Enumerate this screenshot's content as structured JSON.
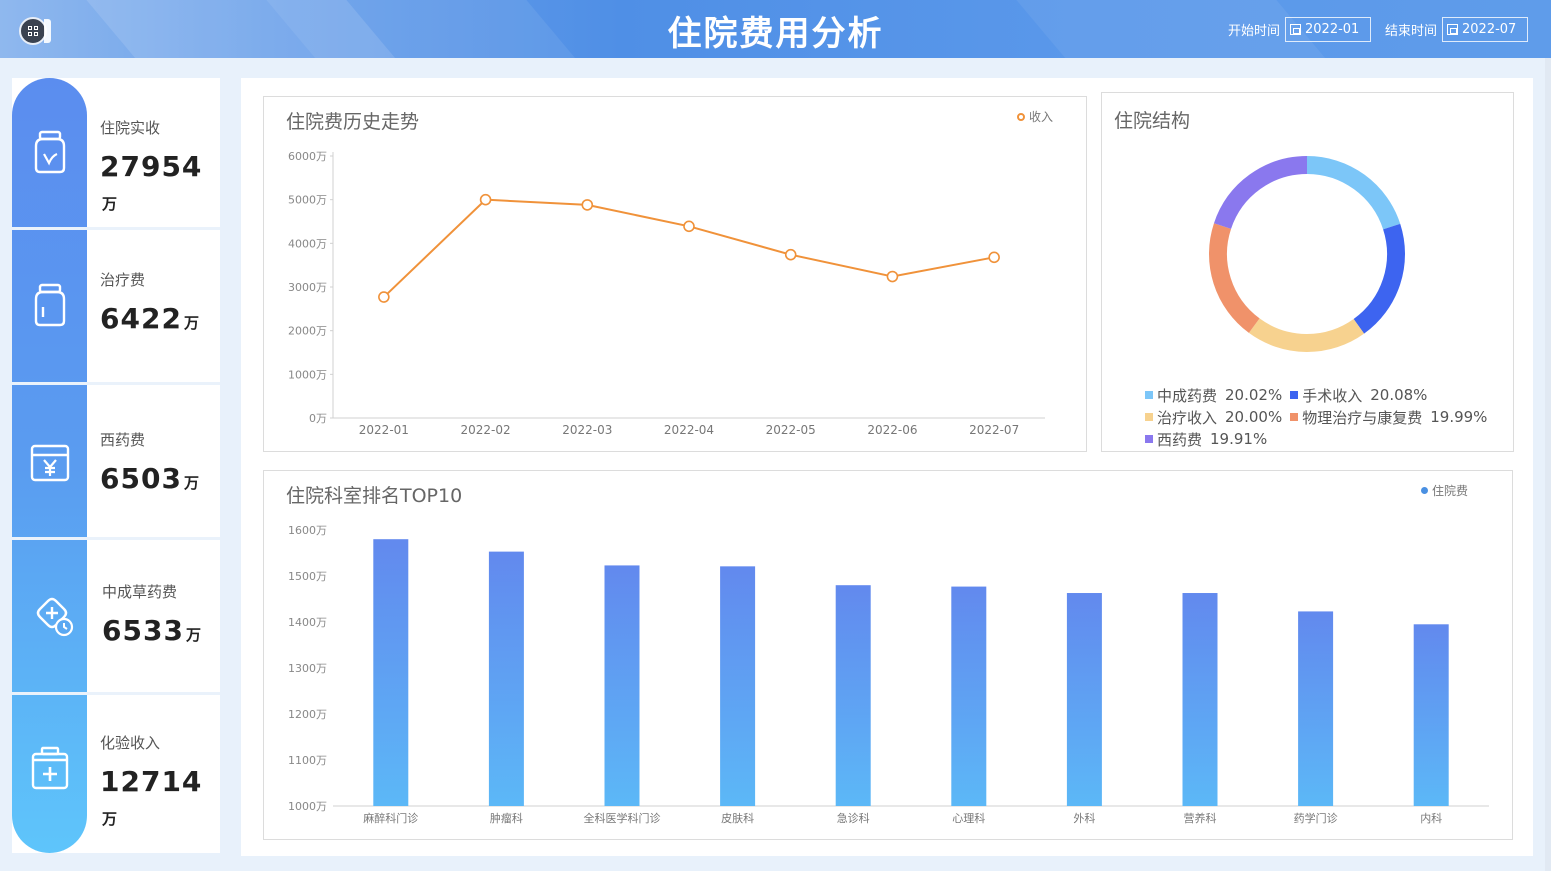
{
  "header": {
    "title": "住院费用分析",
    "start_label": "开始时间",
    "start_value": "2022-01",
    "end_label": "结束时间",
    "end_value": "2022-07"
  },
  "kpis": [
    {
      "label": "住院实收",
      "value": "27954",
      "unit": "万",
      "icon": "medicine-bottle-icon"
    },
    {
      "label": "治疗费",
      "value": "6422",
      "unit": "万",
      "icon": "bottle-icon"
    },
    {
      "label": "西药费",
      "value": "6503",
      "unit": "万",
      "icon": "yuan-card-icon"
    },
    {
      "label": "中成草药费",
      "value": "6533",
      "unit": "万",
      "icon": "medical-clock-icon"
    },
    {
      "label": "化验收入",
      "value": "12714",
      "unit": "万",
      "icon": "medical-kit-icon"
    }
  ],
  "colors": {
    "line": "#f0923a",
    "bar_top": "#6289ee",
    "bar_bottom": "#5cb8f7",
    "legend_dot": "#4a90e2"
  },
  "chart_data": [
    {
      "type": "line",
      "title": "住院费历史走势",
      "legend": "收入",
      "legend_position": "top-right",
      "x": [
        "2022-01",
        "2022-02",
        "2022-03",
        "2022-04",
        "2022-05",
        "2022-06",
        "2022-07"
      ],
      "series": [
        {
          "name": "收入",
          "values": [
            2770,
            5000,
            4880,
            4390,
            3740,
            3240,
            3680
          ]
        }
      ],
      "ylim": [
        0,
        6000
      ],
      "yticks": [
        0,
        1000,
        2000,
        3000,
        4000,
        5000,
        6000
      ],
      "ytick_labels": [
        "0万",
        "1000万",
        "2000万",
        "3000万",
        "4000万",
        "5000万",
        "6000万"
      ],
      "grid": false
    },
    {
      "type": "pie",
      "title": "住院结构",
      "donut": true,
      "slices": [
        {
          "name": "中成药费",
          "value": 20.02,
          "label": "20.02%",
          "color": "#7cc6f8"
        },
        {
          "name": "手术收入",
          "value": 20.08,
          "label": "20.08%",
          "color": "#3d64f0"
        },
        {
          "name": "治疗收入",
          "value": 20.0,
          "label": "20.00%",
          "color": "#f7d28f"
        },
        {
          "name": "物理治疗与康复费",
          "value": 19.99,
          "label": "19.99%",
          "color": "#f0926a"
        },
        {
          "name": "西药费",
          "value": 19.91,
          "label": "19.91%",
          "color": "#8a78ee"
        }
      ]
    },
    {
      "type": "bar",
      "title": "住院科室排名TOP10",
      "legend": "住院费",
      "legend_position": "top-right",
      "categories": [
        "麻醉科门诊",
        "肿瘤科",
        "全科医学科门诊",
        "皮肤科",
        "急诊科",
        "心理科",
        "外科",
        "营养科",
        "药学门诊",
        "内科"
      ],
      "series": [
        {
          "name": "住院费",
          "values": [
            1580,
            1553,
            1523,
            1521,
            1480,
            1477,
            1463,
            1463,
            1423,
            1395
          ]
        }
      ],
      "ylim": [
        1000,
        1600
      ],
      "yticks": [
        1000,
        1100,
        1200,
        1300,
        1400,
        1500,
        1600
      ],
      "ytick_labels": [
        "1000万",
        "1100万",
        "1200万",
        "1300万",
        "1400万",
        "1500万",
        "1600万"
      ],
      "grid": false
    }
  ]
}
